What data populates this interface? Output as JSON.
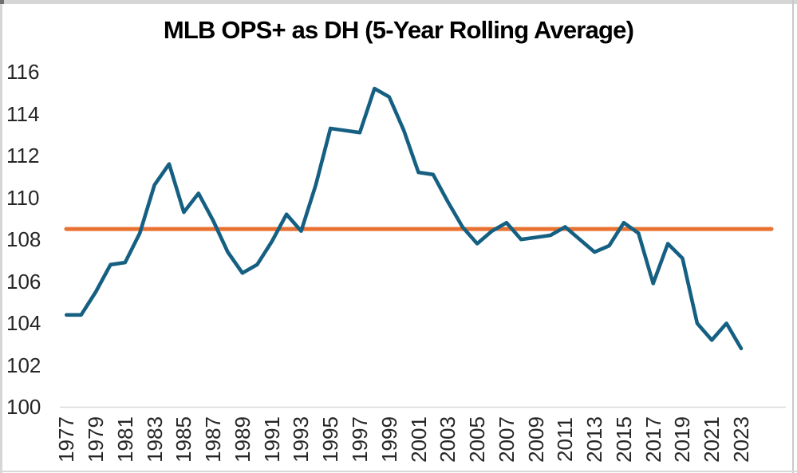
{
  "chart_data": {
    "type": "line",
    "title": "MLB OPS+ as DH (5-Year Rolling Average)",
    "x": [
      1977,
      1978,
      1979,
      1980,
      1981,
      1982,
      1983,
      1984,
      1985,
      1986,
      1987,
      1988,
      1989,
      1990,
      1991,
      1992,
      1993,
      1994,
      1995,
      1996,
      1997,
      1998,
      1999,
      2000,
      2001,
      2002,
      2003,
      2004,
      2005,
      2006,
      2007,
      2008,
      2009,
      2010,
      2011,
      2012,
      2013,
      2014,
      2015,
      2016,
      2017,
      2018,
      2019,
      2020,
      2021,
      2022,
      2023
    ],
    "series": [
      {
        "name": "MLB OPS+ as DH (5-Year Rolling Average)",
        "color": "#156082",
        "values": [
          104.4,
          104.4,
          105.5,
          106.8,
          106.9,
          108.3,
          110.6,
          111.6,
          109.3,
          110.2,
          108.9,
          107.4,
          106.4,
          106.8,
          107.9,
          109.2,
          108.4,
          110.6,
          113.3,
          113.2,
          113.1,
          115.2,
          114.8,
          113.2,
          111.2,
          111.1,
          109.8,
          108.6,
          107.8,
          108.4,
          108.8,
          108.0,
          108.1,
          108.2,
          108.6,
          108.0,
          107.4,
          107.7,
          108.8,
          108.3,
          105.9,
          107.8,
          107.1,
          104.0,
          103.2,
          104.0,
          102.8
        ]
      }
    ],
    "reference_line": {
      "value": 108.5,
      "color": "#E97132"
    },
    "ylim": [
      100,
      116
    ],
    "yticks": [
      100,
      102,
      104,
      106,
      108,
      110,
      112,
      114,
      116
    ],
    "xtick_labels": [
      "1977",
      "1979",
      "1981",
      "1983",
      "1985",
      "1987",
      "1989",
      "1991",
      "1993",
      "1995",
      "1997",
      "1999",
      "2001",
      "2003",
      "2005",
      "2007",
      "2009",
      "2011",
      "2013",
      "2015",
      "2017",
      "2019",
      "2021",
      "2023"
    ],
    "xlabel": "",
    "ylabel": "",
    "legend": "none",
    "grid": "none",
    "axis_line_color": "#d9d9d9",
    "text_color": "#262626",
    "title_color": "#000000",
    "background_color": "#ffffff"
  }
}
